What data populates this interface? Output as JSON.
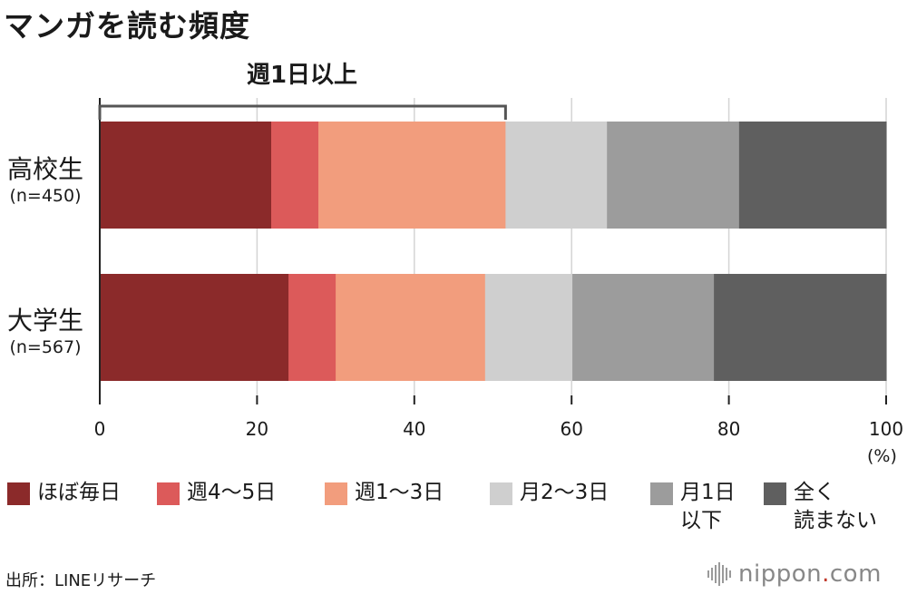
{
  "title": "マンガを読む頻度",
  "bracket_label": "週1日以上",
  "axis_unit": "(%)",
  "source": "出所：LINEリサーチ",
  "logo": {
    "name": "nippon",
    "dot": ".",
    "suffix": "com"
  },
  "colors": [
    "#8b2a2a",
    "#dc5a5a",
    "#f29d7d",
    "#cfcfcf",
    "#9c9c9c",
    "#5f5f5f"
  ],
  "chart_data": {
    "type": "bar",
    "orientation": "horizontal",
    "stacked": true,
    "categories": [
      {
        "name": "高校生",
        "n": "(n=450)"
      },
      {
        "name": "大学生",
        "n": "(n=567)"
      }
    ],
    "series": [
      {
        "name": "ほぼ毎日",
        "values": [
          21.8,
          24.0
        ]
      },
      {
        "name": "週4〜5日",
        "values": [
          6.0,
          6.0
        ]
      },
      {
        "name": "週1〜3日",
        "values": [
          23.8,
          19.0
        ]
      },
      {
        "name": "月2〜3日",
        "values": [
          12.9,
          11.1
        ]
      },
      {
        "name": "月1日\n以下",
        "values": [
          16.8,
          18.0
        ]
      },
      {
        "name": "全く\n読まない",
        "values": [
          18.7,
          21.9
        ]
      }
    ],
    "xlim": [
      0,
      100
    ],
    "xticks": [
      0,
      20,
      40,
      60,
      80,
      100
    ],
    "grid": true,
    "legend_position": "bottom",
    "bracket": {
      "label": "週1日以上",
      "from": 0,
      "to": 51.6,
      "category": "高校生"
    }
  }
}
